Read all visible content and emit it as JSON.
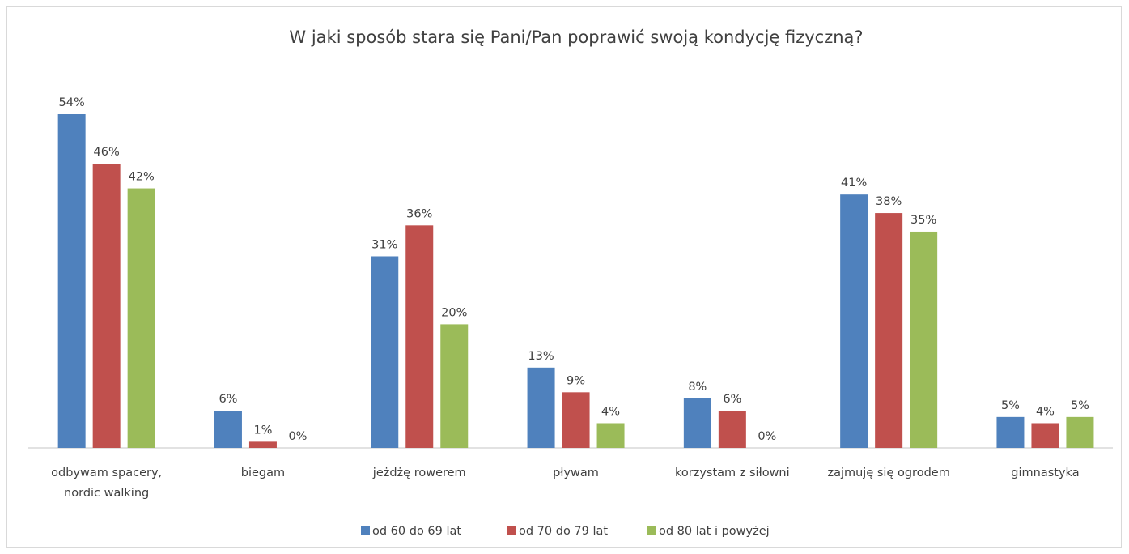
{
  "chart_data": {
    "type": "bar",
    "title": "W jaki sposób stara się Pani/Pan poprawić swoją kondycję fizyczną?",
    "categories": [
      [
        "odbywam spacery,",
        "nordic walking"
      ],
      [
        "biegam"
      ],
      [
        "jeżdżę rowerem"
      ],
      [
        "pływam"
      ],
      [
        "korzystam z siłowni"
      ],
      [
        "zajmuję się ogrodem"
      ],
      [
        "gimnastyka"
      ]
    ],
    "series": [
      {
        "name": "od 60 do 69 lat",
        "color": "#4f81bd",
        "values": [
          54,
          6,
          31,
          13,
          8,
          41,
          5
        ]
      },
      {
        "name": "od 70 do 79 lat",
        "color": "#c0504d",
        "values": [
          46,
          1,
          36,
          9,
          6,
          38,
          4
        ]
      },
      {
        "name": "od 80 lat i powyżej",
        "color": "#9bbb59",
        "values": [
          42,
          0,
          20,
          4,
          0,
          35,
          5
        ]
      }
    ],
    "value_suffix": "%",
    "ylim": [
      0,
      54
    ],
    "grid": false,
    "legend_position": "bottom"
  }
}
